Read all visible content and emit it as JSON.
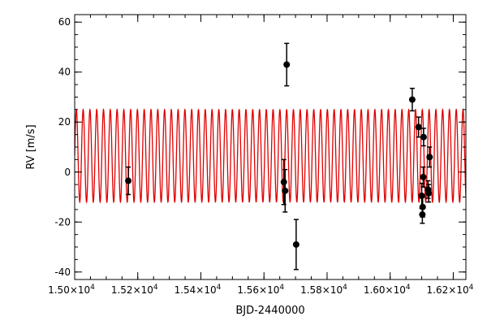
{
  "chart_data": {
    "type": "scatter",
    "title": "",
    "xlabel": "BJD-2440000",
    "ylabel": "RV [m/s]",
    "xlim": [
      15000,
      16240
    ],
    "ylim": [
      -43,
      63
    ],
    "xticks": [
      {
        "value": 15000,
        "mant": "1.50×10",
        "exp": "4"
      },
      {
        "value": 15200,
        "mant": "1.52×10",
        "exp": "4"
      },
      {
        "value": 15400,
        "mant": "1.54×10",
        "exp": "4"
      },
      {
        "value": 15600,
        "mant": "1.56×10",
        "exp": "4"
      },
      {
        "value": 15800,
        "mant": "1.58×10",
        "exp": "4"
      },
      {
        "value": 16000,
        "mant": "1.60×10",
        "exp": "4"
      },
      {
        "value": 16200,
        "mant": "1.62×10",
        "exp": "4"
      }
    ],
    "xminor_step": 50,
    "yticks": [
      -40,
      -20,
      0,
      20,
      40,
      60
    ],
    "yminor_step": 5,
    "grid": false,
    "model": {
      "color": "#e00000",
      "mean": 6.5,
      "amplitude": 18.5,
      "period": 21.5,
      "phase": 0
    },
    "points_color": "#000000",
    "points": [
      {
        "x": 15170,
        "y": -3.5,
        "err": 5.5
      },
      {
        "x": 15663,
        "y": -4,
        "err": 9
      },
      {
        "x": 15667,
        "y": -7.5,
        "err": 8.5
      },
      {
        "x": 15672,
        "y": 43,
        "err": 8.5
      },
      {
        "x": 15702,
        "y": -29,
        "err": 10
      },
      {
        "x": 16070,
        "y": 29,
        "err": 4.5
      },
      {
        "x": 16090,
        "y": 18,
        "err": 4
      },
      {
        "x": 16100,
        "y": -9.5,
        "err": 5
      },
      {
        "x": 16103,
        "y": -14,
        "err": 4
      },
      {
        "x": 16105,
        "y": -2,
        "err": 4
      },
      {
        "x": 16106,
        "y": 14,
        "err": 3.5
      },
      {
        "x": 16102,
        "y": -17,
        "err": 3.5
      },
      {
        "x": 16120,
        "y": -7,
        "err": 3.5
      },
      {
        "x": 16122,
        "y": -8.5,
        "err": 3.5
      },
      {
        "x": 16125,
        "y": 6,
        "err": 4
      }
    ]
  }
}
